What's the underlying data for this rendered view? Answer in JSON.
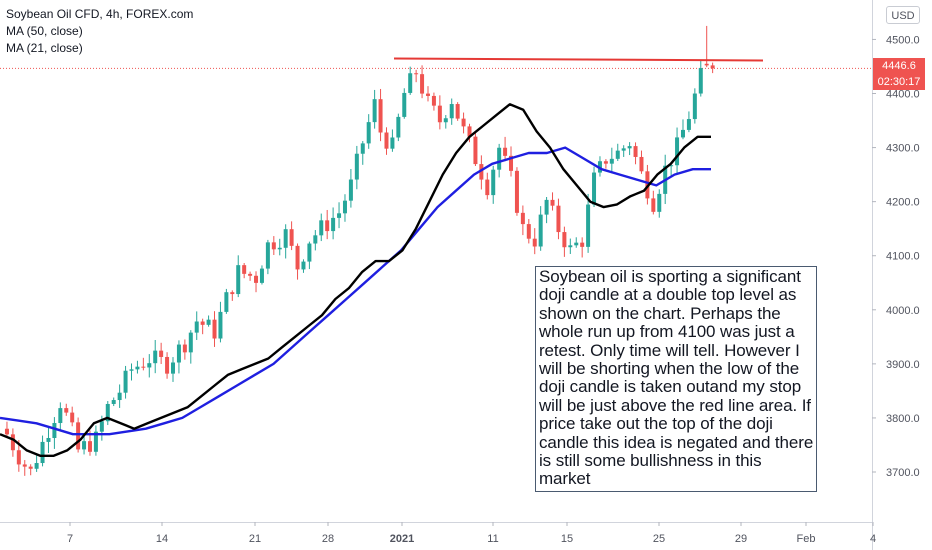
{
  "legend": {
    "title": "Soybean Oil CFD, 4h, FOREX.com",
    "ma50": "MA (50, close)",
    "ma21": "MA (21, close)"
  },
  "currency_button": "USD",
  "last_price_label": "4446.6",
  "countdown_label": "02:30:17",
  "annotation": "Soybean oil is sporting a significant doji candle at a double top level as shown on the chart. Perhaps the whole run up from 4100 was just a retest. Only time will tell. However I will be shorting when the low of the doji candle is taken outand my stop will be just above the red line area. If price take out the top of the doji candle this idea is negated and there is still some bullishness in this market",
  "colors": {
    "up": "#26a69a",
    "down": "#ef5350",
    "ma21": "#000000",
    "ma50": "#1f1fe0",
    "resistance": "#e53935"
  },
  "chart_data": {
    "type": "candlestick",
    "y_axis": {
      "ticks": [
        3700,
        3800,
        3900,
        4000,
        4100,
        4200,
        4300,
        4400,
        4500
      ],
      "range": [
        3630,
        4560
      ]
    },
    "x_axis": {
      "ticks": [
        "7",
        "14",
        "21",
        "28",
        "2021",
        "11",
        "15",
        "25",
        "29",
        "Feb",
        "4"
      ]
    },
    "resistance_level": 4463,
    "last_price": 4446.6,
    "close_path": [
      {
        "t": 0,
        "v": 3770
      },
      {
        "t": 2.5,
        "v": 3720
      },
      {
        "t": 4,
        "v": 3700
      },
      {
        "t": 7,
        "v": 3780
      },
      {
        "t": 9,
        "v": 3830
      },
      {
        "t": 10.5,
        "v": 3790
      },
      {
        "t": 12,
        "v": 3740
      },
      {
        "t": 15,
        "v": 3760
      },
      {
        "t": 17,
        "v": 3820
      },
      {
        "t": 19,
        "v": 3850
      },
      {
        "t": 21,
        "v": 3890
      },
      {
        "t": 24,
        "v": 3910
      },
      {
        "t": 27,
        "v": 3900
      },
      {
        "t": 30,
        "v": 3940
      },
      {
        "t": 32,
        "v": 3980
      },
      {
        "t": 35,
        "v": 3960
      },
      {
        "t": 37,
        "v": 4020
      },
      {
        "t": 39,
        "v": 4070
      },
      {
        "t": 42,
        "v": 4060
      },
      {
        "t": 44,
        "v": 4120
      },
      {
        "t": 47,
        "v": 4140
      },
      {
        "t": 49,
        "v": 4080
      },
      {
        "t": 51,
        "v": 4130
      },
      {
        "t": 54,
        "v": 4160
      },
      {
        "t": 56,
        "v": 4180
      },
      {
        "t": 58,
        "v": 4230
      },
      {
        "t": 60,
        "v": 4310
      },
      {
        "t": 62,
        "v": 4380
      },
      {
        "t": 63,
        "v": 4330
      },
      {
        "t": 65,
        "v": 4300
      },
      {
        "t": 67,
        "v": 4400
      },
      {
        "t": 69,
        "v": 4440
      },
      {
        "t": 71,
        "v": 4380
      },
      {
        "t": 73,
        "v": 4350
      },
      {
        "t": 75,
        "v": 4390
      },
      {
        "t": 77,
        "v": 4330
      },
      {
        "t": 79,
        "v": 4280
      },
      {
        "t": 81,
        "v": 4230
      },
      {
        "t": 83,
        "v": 4300
      },
      {
        "t": 85,
        "v": 4240
      },
      {
        "t": 87,
        "v": 4150
      },
      {
        "t": 89,
        "v": 4130
      },
      {
        "t": 91,
        "v": 4200
      },
      {
        "t": 93,
        "v": 4150
      },
      {
        "t": 95,
        "v": 4110
      },
      {
        "t": 97,
        "v": 4130
      },
      {
        "t": 99,
        "v": 4240
      },
      {
        "t": 101,
        "v": 4280
      },
      {
        "t": 103,
        "v": 4290
      },
      {
        "t": 105,
        "v": 4310
      },
      {
        "t": 107,
        "v": 4250
      },
      {
        "t": 109,
        "v": 4200
      },
      {
        "t": 111,
        "v": 4260
      },
      {
        "t": 113,
        "v": 4300
      },
      {
        "t": 115,
        "v": 4360
      },
      {
        "t": 117,
        "v": 4430
      },
      {
        "t": 118,
        "v": 4460
      },
      {
        "t": 119,
        "v": 4447
      }
    ],
    "ma21": [
      [
        3770,
        3760
      ],
      [
        3740,
        3730
      ],
      [
        3730,
        3740
      ],
      [
        3760,
        3790
      ],
      [
        3800,
        3790
      ],
      [
        3780,
        3790
      ],
      [
        3800,
        3810
      ],
      [
        3820,
        3840
      ],
      [
        3860,
        3880
      ],
      [
        3890,
        3900
      ],
      [
        3910,
        3930
      ],
      [
        3950,
        3970
      ],
      [
        3990,
        4020
      ],
      [
        4040,
        4070
      ],
      [
        4090,
        4090
      ],
      [
        4110,
        4150
      ],
      [
        4200,
        4250
      ],
      [
        4290,
        4320
      ],
      [
        4340,
        4360
      ],
      [
        4380,
        4370
      ],
      [
        4330,
        4300
      ],
      [
        4260,
        4230
      ],
      [
        4200,
        4190
      ],
      [
        4195,
        4210
      ],
      [
        4220,
        4250
      ],
      [
        4270,
        4300
      ],
      [
        4320,
        4320
      ]
    ],
    "ma50": [
      [
        3800,
        3795
      ],
      [
        3790,
        3780
      ],
      [
        3770,
        3770
      ],
      [
        3770,
        3775
      ],
      [
        3780,
        3790
      ],
      [
        3800,
        3820
      ],
      [
        3840,
        3860
      ],
      [
        3880,
        3900
      ],
      [
        3930,
        3960
      ],
      [
        3990,
        4020
      ],
      [
        4050,
        4080
      ],
      [
        4110,
        4150
      ],
      [
        4190,
        4220
      ],
      [
        4250,
        4270
      ],
      [
        4280,
        4290
      ],
      [
        4290,
        4300
      ],
      [
        4280,
        4260
      ],
      [
        4250,
        4240
      ],
      [
        4230,
        4250
      ],
      [
        4260,
        4260
      ]
    ]
  }
}
